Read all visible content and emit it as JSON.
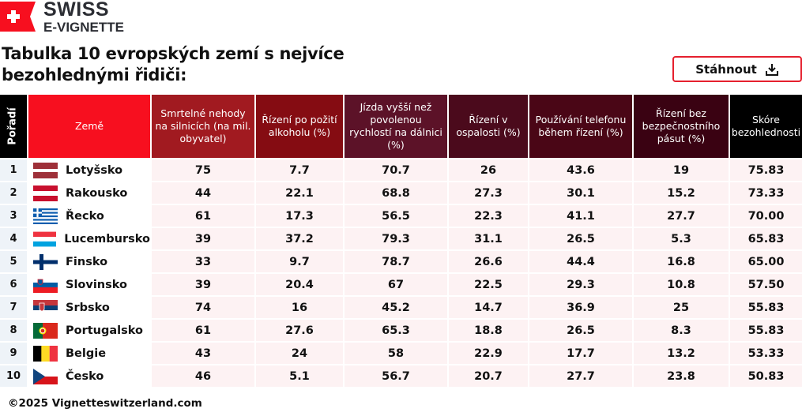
{
  "brand": {
    "line1": "SWISS",
    "line2": "E-VIGNETTE",
    "color": "#f70f1f"
  },
  "title": "Tabulka 10 evropských zemí s nejvíce bezohlednými řidiči:",
  "download": {
    "label": "Stáhnout",
    "icon": "download-icon",
    "border_color": "#e5202e"
  },
  "table": {
    "headers": [
      "Pořadí",
      "Země",
      "Smrtelné nehody na silnicích (na mil. obyvatel)",
      "Řízení po požití alkoholu (%)",
      "Jízda vyšší než povolenou rychlostí na dálnici (%)",
      "Řízení v ospalosti (%)",
      "Používání telefonu během řízení (%)",
      "Řízení bez bezpečnostního pásut (%)",
      "Skóre bezohlednosti"
    ],
    "header_colors": [
      "#000000",
      "#f70f1f",
      "#a11a20",
      "#850c12",
      "#5c1228",
      "#4b0a1c",
      "#4a0616",
      "#3a0212",
      "#000000"
    ],
    "rows": [
      {
        "rank": "1",
        "country": "Lotyšsko",
        "flag": "latvia",
        "values": [
          "75",
          "7.7",
          "70.7",
          "26",
          "43.6",
          "19",
          "75.83"
        ]
      },
      {
        "rank": "2",
        "country": "Rakousko",
        "flag": "austria",
        "values": [
          "44",
          "22.1",
          "68.8",
          "27.3",
          "30.1",
          "15.2",
          "73.33"
        ]
      },
      {
        "rank": "3",
        "country": "Řecko",
        "flag": "greece",
        "values": [
          "61",
          "17.3",
          "56.5",
          "22.3",
          "41.1",
          "27.7",
          "70.00"
        ]
      },
      {
        "rank": "4",
        "country": "Lucembursko",
        "flag": "luxembourg",
        "values": [
          "39",
          "37.2",
          "79.3",
          "31.1",
          "26.5",
          "5.3",
          "65.83"
        ]
      },
      {
        "rank": "5",
        "country": "Finsko",
        "flag": "finland",
        "values": [
          "33",
          "9.7",
          "78.7",
          "26.6",
          "44.4",
          "16.8",
          "65.00"
        ]
      },
      {
        "rank": "6",
        "country": "Slovinsko",
        "flag": "slovenia",
        "values": [
          "39",
          "20.4",
          "67",
          "22.5",
          "29.3",
          "10.8",
          "57.50"
        ]
      },
      {
        "rank": "7",
        "country": "Srbsko",
        "flag": "serbia",
        "values": [
          "74",
          "16",
          "45.2",
          "14.7",
          "36.9",
          "25",
          "55.83"
        ]
      },
      {
        "rank": "8",
        "country": "Portugalsko",
        "flag": "portugal",
        "values": [
          "61",
          "27.6",
          "65.3",
          "18.8",
          "26.5",
          "8.3",
          "55.83"
        ]
      },
      {
        "rank": "9",
        "country": "Belgie",
        "flag": "belgium",
        "values": [
          "43",
          "24",
          "58",
          "22.9",
          "17.7",
          "13.2",
          "53.33"
        ]
      },
      {
        "rank": "10",
        "country": "Česko",
        "flag": "czechia",
        "values": [
          "46",
          "5.1",
          "56.7",
          "20.7",
          "27.7",
          "23.8",
          "50.83"
        ]
      }
    ]
  },
  "footer": "©2025 Vignetteswitzerland.com"
}
